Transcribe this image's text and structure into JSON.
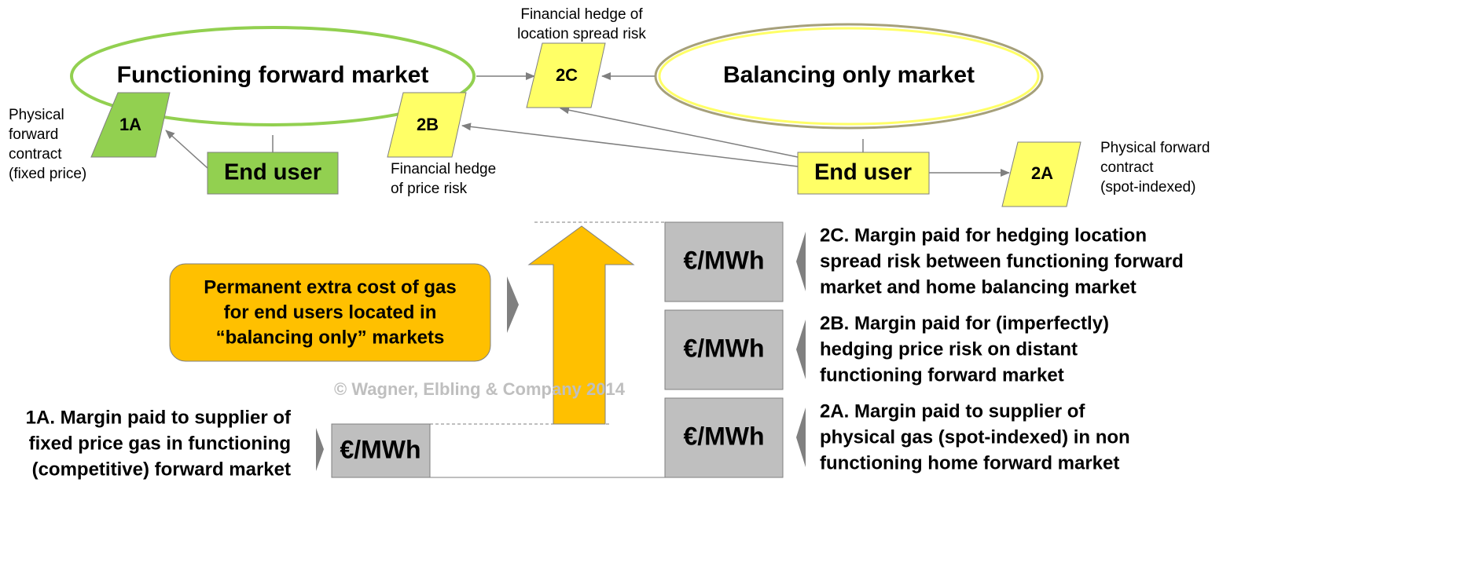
{
  "markets": {
    "forward": "Functioning forward market",
    "balancing": "Balancing only market"
  },
  "nodes": {
    "1A": "1A",
    "2B": "2B",
    "2C": "2C",
    "2A": "2A"
  },
  "end_users": {
    "left": "End user",
    "right": "End user"
  },
  "captions": {
    "1A": [
      "Physical",
      "forward",
      "contract",
      "(fixed price)"
    ],
    "2B": [
      "Financial hedge",
      "of price risk"
    ],
    "2C": [
      "Financial hedge of",
      "location spread risk"
    ],
    "2A": [
      "Physical forward",
      "contract",
      "(spot-indexed)"
    ]
  },
  "extra_cost": [
    "Permanent extra cost of gas",
    "for end users located in",
    "“balancing only” markets"
  ],
  "unit_boxes": [
    "€/MWh",
    "€/MWh",
    "€/MWh",
    "€/MWh"
  ],
  "margins": {
    "2C": [
      "2C. Margin paid for hedging location",
      "spread risk between functioning forward",
      "market and home balancing market"
    ],
    "2B": [
      "2B. Margin paid for (imperfectly)",
      "hedging price risk on distant",
      "functioning forward market"
    ],
    "2A": [
      "2A. Margin paid to supplier of",
      "physical gas (spot-indexed) in non",
      "functioning home forward market"
    ],
    "1A": [
      "1A. Margin paid to supplier of",
      "fixed price gas in functioning",
      "(competitive) forward market"
    ]
  },
  "copyright": "© Wagner, Elbling & Company 2014"
}
